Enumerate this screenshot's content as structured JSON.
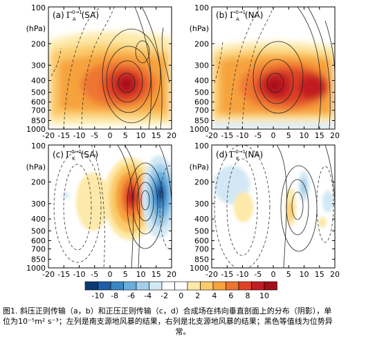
{
  "chart_data": [
    {
      "type": "heatmap",
      "panel_label": "(a)",
      "title_sym": "Γ",
      "title_sup": "0→1",
      "title_sub": "A",
      "title_tag": "(SA)",
      "y_unit_label": "(hPa)",
      "y_ticks": [
        "100",
        "200",
        "300",
        "400",
        "500",
        "600",
        "700",
        "850",
        "1000"
      ],
      "x_ticks": [
        "-20",
        "-15",
        "-10",
        "-5",
        "0",
        "5",
        "10",
        "15",
        "20"
      ],
      "xlim": [
        -20,
        20
      ],
      "ylim": [
        1000,
        100
      ],
      "max_center": {
        "x": 4,
        "p": 450,
        "value": 10
      },
      "shaded_extent": {
        "x": [
          -20,
          20
        ],
        "p": [
          1000,
          150
        ]
      }
    },
    {
      "type": "heatmap",
      "panel_label": "(b)",
      "title_sym": "Γ",
      "title_sup": "0→1",
      "title_sub": "A",
      "title_tag": "(NA)",
      "y_unit_label": "(hPa)",
      "y_ticks": [
        "100",
        "200",
        "300",
        "400",
        "500",
        "600",
        "700",
        "850",
        "1000"
      ],
      "x_ticks": [
        "-20",
        "-15",
        "-10",
        "-5",
        "0",
        "5",
        "10",
        "15",
        "20"
      ],
      "xlim": [
        -20,
        20
      ],
      "ylim": [
        1000,
        100
      ],
      "max_center": {
        "x": 0,
        "p": 450,
        "value": 10
      },
      "shaded_extent": {
        "x": [
          -20,
          20
        ],
        "p": [
          1000,
          180
        ]
      }
    },
    {
      "type": "heatmap",
      "panel_label": "(c)",
      "title_sym": "Γ",
      "title_sup": "0→1",
      "title_sub": "K",
      "title_tag": "(SA)",
      "y_unit_label": "(hPa)",
      "y_ticks": [
        "100",
        "200",
        "300",
        "400",
        "500",
        "600",
        "700",
        "850",
        "1000"
      ],
      "x_ticks": [
        "-20",
        "-15",
        "-10",
        "-5",
        "0",
        "5",
        "10",
        "15",
        "20"
      ],
      "xlim": [
        -20,
        20
      ],
      "ylim": [
        1000,
        100
      ],
      "positive_center": {
        "x": 6,
        "p": 280,
        "value": 10
      },
      "negative_center": {
        "x": 16,
        "p": 270,
        "value": -10
      }
    },
    {
      "type": "heatmap",
      "panel_label": "(d)",
      "title_sym": "Γ",
      "title_sup": "0→1",
      "title_sub": "K",
      "title_tag": "(NA)",
      "y_unit_label": "(hPa)",
      "y_ticks": [
        "100",
        "200",
        "300",
        "400",
        "500",
        "600",
        "700",
        "850",
        "1000"
      ],
      "x_ticks": [
        "-20",
        "-15",
        "-10",
        "-5",
        "0",
        "5",
        "10",
        "15",
        "20"
      ],
      "xlim": [
        -20,
        20
      ],
      "ylim": [
        1000,
        100
      ],
      "positive_center": {
        "x": 3,
        "p": 400,
        "value": 3
      },
      "negative_center": {
        "x": 12,
        "p": 280,
        "value": -3
      }
    }
  ],
  "colorbar": {
    "labels": [
      "-10",
      "-8",
      "-6",
      "-4",
      "-2",
      "0",
      "2",
      "4",
      "6",
      "8",
      "10"
    ],
    "colors": [
      "#0d3a75",
      "#1e5ea6",
      "#3a86c4",
      "#6aaedb",
      "#a2cfea",
      "#d3e8f5",
      "#ffffff",
      "#ffffff",
      "#fde9a9",
      "#fbcb6b",
      "#f6a23d",
      "#ee7430",
      "#dd4227",
      "#c21d22",
      "#a20f1a"
    ]
  },
  "caption": {
    "line1": "图1. 斜压正则传输（a，b）和正压正则传输（c，d）合成场在纬向垂直剖面上的分布（阴影），单",
    "line2": "位为10⁻⁵m² s⁻³；左列是南支源地风暴的结果，右列是北支源地风暴的结果；黑色等值线为位势异",
    "line3": "常。"
  }
}
